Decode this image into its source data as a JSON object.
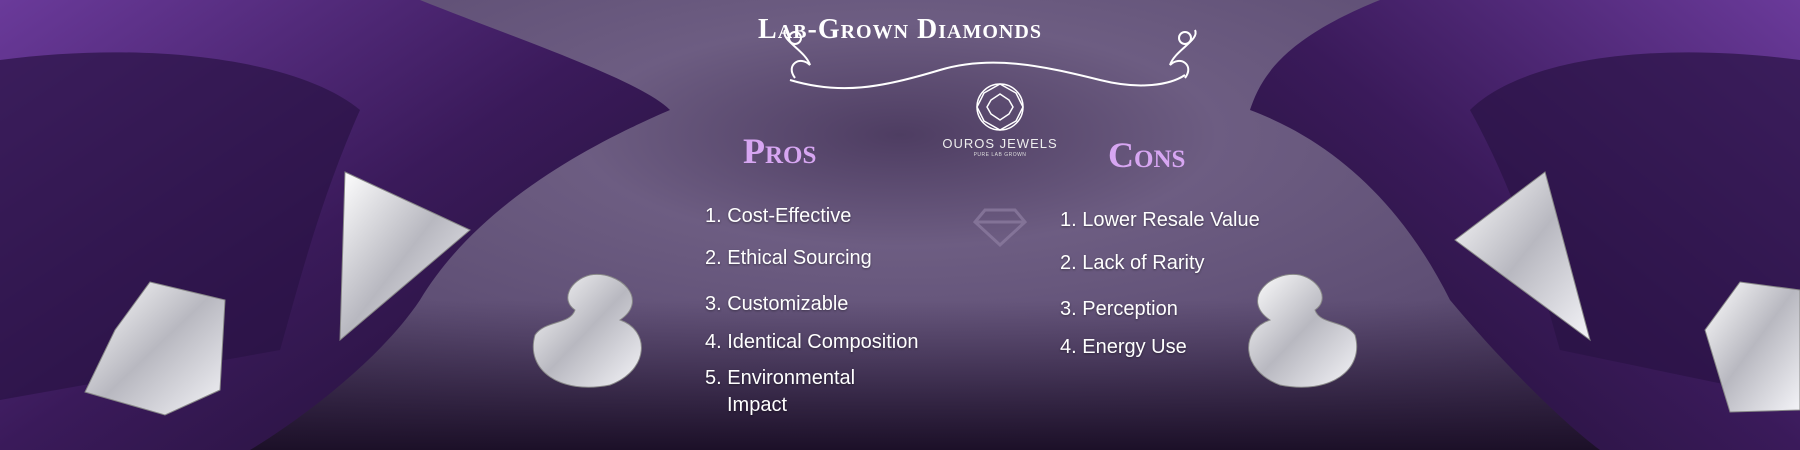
{
  "banner": {
    "title": "Lab-Grown Diamonds",
    "brand": {
      "name": "OUROS JEWELS",
      "tagline": "PURE LAB GROWN"
    },
    "pros": {
      "heading": "Pros",
      "items": [
        "1. Cost-Effective",
        "2. Ethical Sourcing",
        "3. Customizable",
        "4. Identical Composition",
        "5. Environmental",
        "Impact"
      ]
    },
    "cons": {
      "heading": "Cons",
      "items": [
        "1. Lower Resale Value",
        "2. Lack of Rarity",
        "3. Perception",
        "4. Energy Use"
      ]
    },
    "colors": {
      "heading": "#d7a6f2",
      "background": "#5e4e74",
      "cloth": "#4a1f74"
    }
  }
}
